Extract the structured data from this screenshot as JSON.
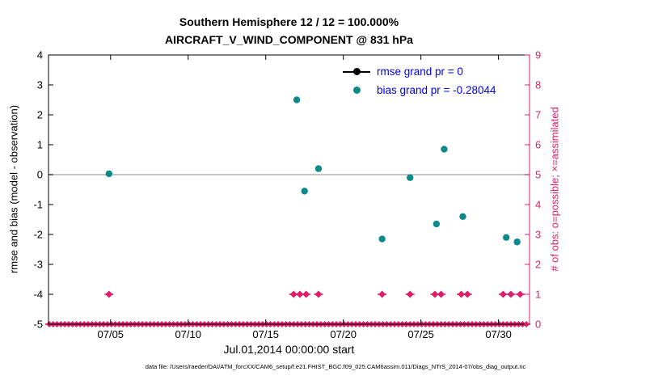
{
  "footer": {
    "datafile": "data file: /Users/raeder/DAI/ATM_forcXX/CAM6_setup/f.e21.FHIST_BGC.f09_025.CAM6assim.011/Diags_NTrS_2014-07/obs_diag_output.nc"
  },
  "chart_data": {
    "type": "scatter",
    "title": "Southern Hemisphere 12 / 12 = 100.000%",
    "subtitle": "AIRCRAFT_V_WIND_COMPONENT @ 831 hPa",
    "xlabel": "Jul.01,2014 00:00:00 start",
    "ylabel_left": "rmse and bias (model - observation)",
    "ylabel_right": "# of obs: o=possible; ×=assimilated",
    "x_domain_days": [
      0,
      31
    ],
    "ylim_left": [
      -5,
      4
    ],
    "ylim_right": [
      0,
      9
    ],
    "grid": false,
    "legend_position": "top-right-inside",
    "x_ticks": [
      {
        "day": 4,
        "label": "07/05"
      },
      {
        "day": 9,
        "label": "07/10"
      },
      {
        "day": 14,
        "label": "07/15"
      },
      {
        "day": 19,
        "label": "07/20"
      },
      {
        "day": 24,
        "label": "07/25"
      },
      {
        "day": 29,
        "label": "07/30"
      }
    ],
    "y_ticks_left": [
      -5,
      -4,
      -3,
      -2,
      -1,
      0,
      1,
      2,
      3,
      4
    ],
    "y_ticks_right": [
      0,
      1,
      2,
      3,
      4,
      5,
      6,
      7,
      8,
      9
    ],
    "zero_reference_line": 0,
    "colors": {
      "rmse": "#000000",
      "bias": "#0c8a8a",
      "obs": "#de1e69",
      "legend_text": "#0000ee",
      "zero_line": "#b0b0b0"
    },
    "legend": [
      {
        "label": "rmse grand pr = 0",
        "color": "#000000"
      },
      {
        "label": "bias grand pr = -0.28044",
        "color": "#0c8a8a"
      }
    ],
    "series": {
      "rmse": [],
      "bias": [
        {
          "day": 3.9,
          "value": 0.03
        },
        {
          "day": 16.0,
          "value": 2.5
        },
        {
          "day": 16.5,
          "value": -0.55
        },
        {
          "day": 17.4,
          "value": 0.2
        },
        {
          "day": 21.5,
          "value": -2.15
        },
        {
          "day": 23.3,
          "value": -0.1
        },
        {
          "day": 25.0,
          "value": -1.65
        },
        {
          "day": 25.5,
          "value": 0.85
        },
        {
          "day": 26.7,
          "value": -1.4
        },
        {
          "day": 29.5,
          "value": -2.1
        },
        {
          "day": 30.2,
          "value": -2.25
        }
      ],
      "obs_count_level1_days": [
        3.9,
        15.8,
        16.2,
        16.6,
        17.4,
        21.5,
        23.3,
        24.9,
        25.3,
        26.6,
        27.0,
        29.3,
        29.8,
        30.4
      ],
      "obs_possible_row": {
        "start": 0.05,
        "end": 30.9,
        "step": 0.25,
        "value": 0
      }
    }
  }
}
